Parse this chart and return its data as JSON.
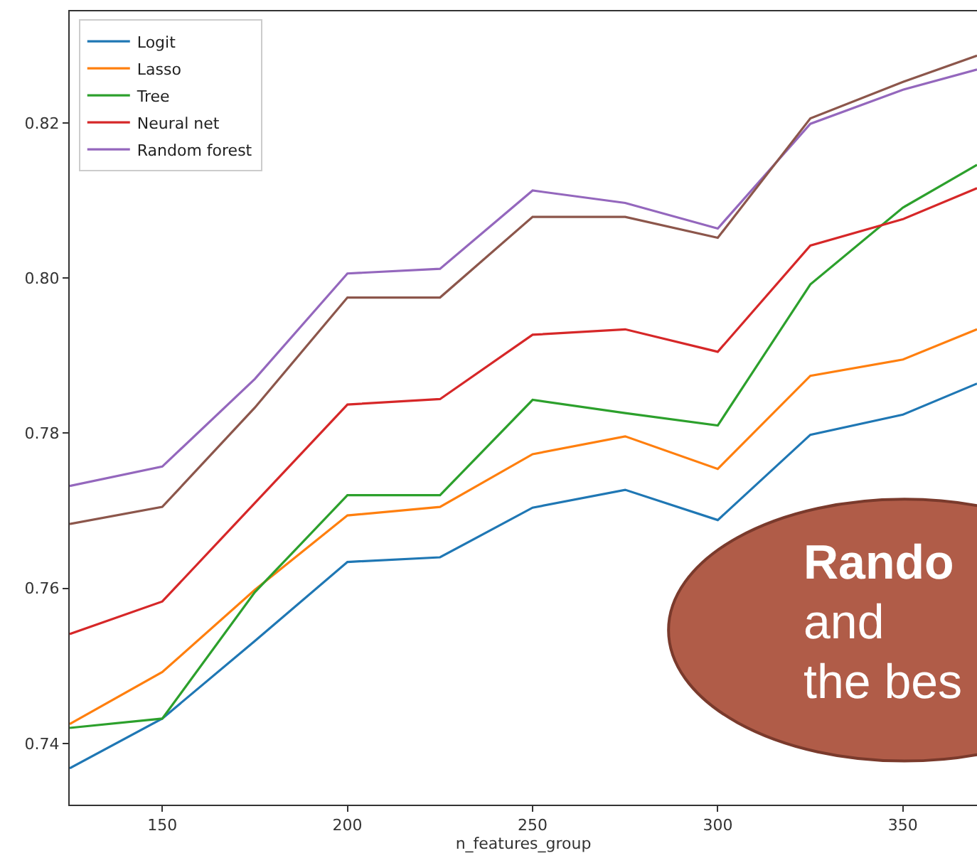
{
  "chart_data": {
    "type": "line",
    "xlabel": "n_features_group",
    "x": [
      125,
      150,
      175,
      200,
      225,
      250,
      275,
      300,
      325,
      350,
      370
    ],
    "series": [
      {
        "name": "Logit",
        "color": "#1f77b4",
        "values": [
          0.7368,
          0.7432,
          0.7532,
          0.7634,
          0.764,
          0.7704,
          0.7727,
          0.7688,
          0.7798,
          0.7824,
          0.7864
        ]
      },
      {
        "name": "Lasso",
        "color": "#ff7f0e",
        "values": [
          0.7425,
          0.7492,
          0.7598,
          0.7694,
          0.7705,
          0.7773,
          0.7796,
          0.7754,
          0.7874,
          0.7895,
          0.7934
        ]
      },
      {
        "name": "Tree",
        "color": "#2ca02c",
        "values": [
          0.742,
          0.7432,
          0.7595,
          0.772,
          0.772,
          0.7843,
          0.7826,
          0.781,
          0.7992,
          0.8091,
          0.8146
        ]
      },
      {
        "name": "Neural net",
        "color": "#d62728",
        "values": [
          0.7541,
          0.7583,
          0.771,
          0.7837,
          0.7844,
          0.7927,
          0.7934,
          0.7905,
          0.8042,
          0.8076,
          0.8116
        ]
      },
      {
        "name": "Random forest",
        "color": "#9467bd",
        "values": [
          0.7732,
          0.7757,
          0.787,
          0.8006,
          0.8012,
          0.8113,
          0.8097,
          0.8064,
          0.8199,
          0.8243,
          0.8269
        ]
      },
      {
        "color": "#8c564b",
        "values": [
          0.7683,
          0.7705,
          0.7833,
          0.7975,
          0.7975,
          0.8079,
          0.8079,
          0.8052,
          0.8206,
          0.8253,
          0.8287
        ]
      }
    ],
    "xlim": [
      125,
      370
    ],
    "xticks": [
      150,
      200,
      250,
      300,
      350
    ],
    "ylim": [
      0.7321,
      0.8344
    ],
    "yticks": [
      {
        "value": 0.74,
        "label": "0.74"
      },
      {
        "value": 0.76,
        "label": "0.76"
      },
      {
        "value": 0.78,
        "label": "0.78"
      },
      {
        "value": 0.8,
        "label": "0.80"
      },
      {
        "value": 0.82,
        "label": "0.82"
      }
    ],
    "annotations": [
      "Rando",
      "and",
      "the bes"
    ],
    "legend": "top left",
    "marker": "none",
    "line_style": "solid"
  }
}
